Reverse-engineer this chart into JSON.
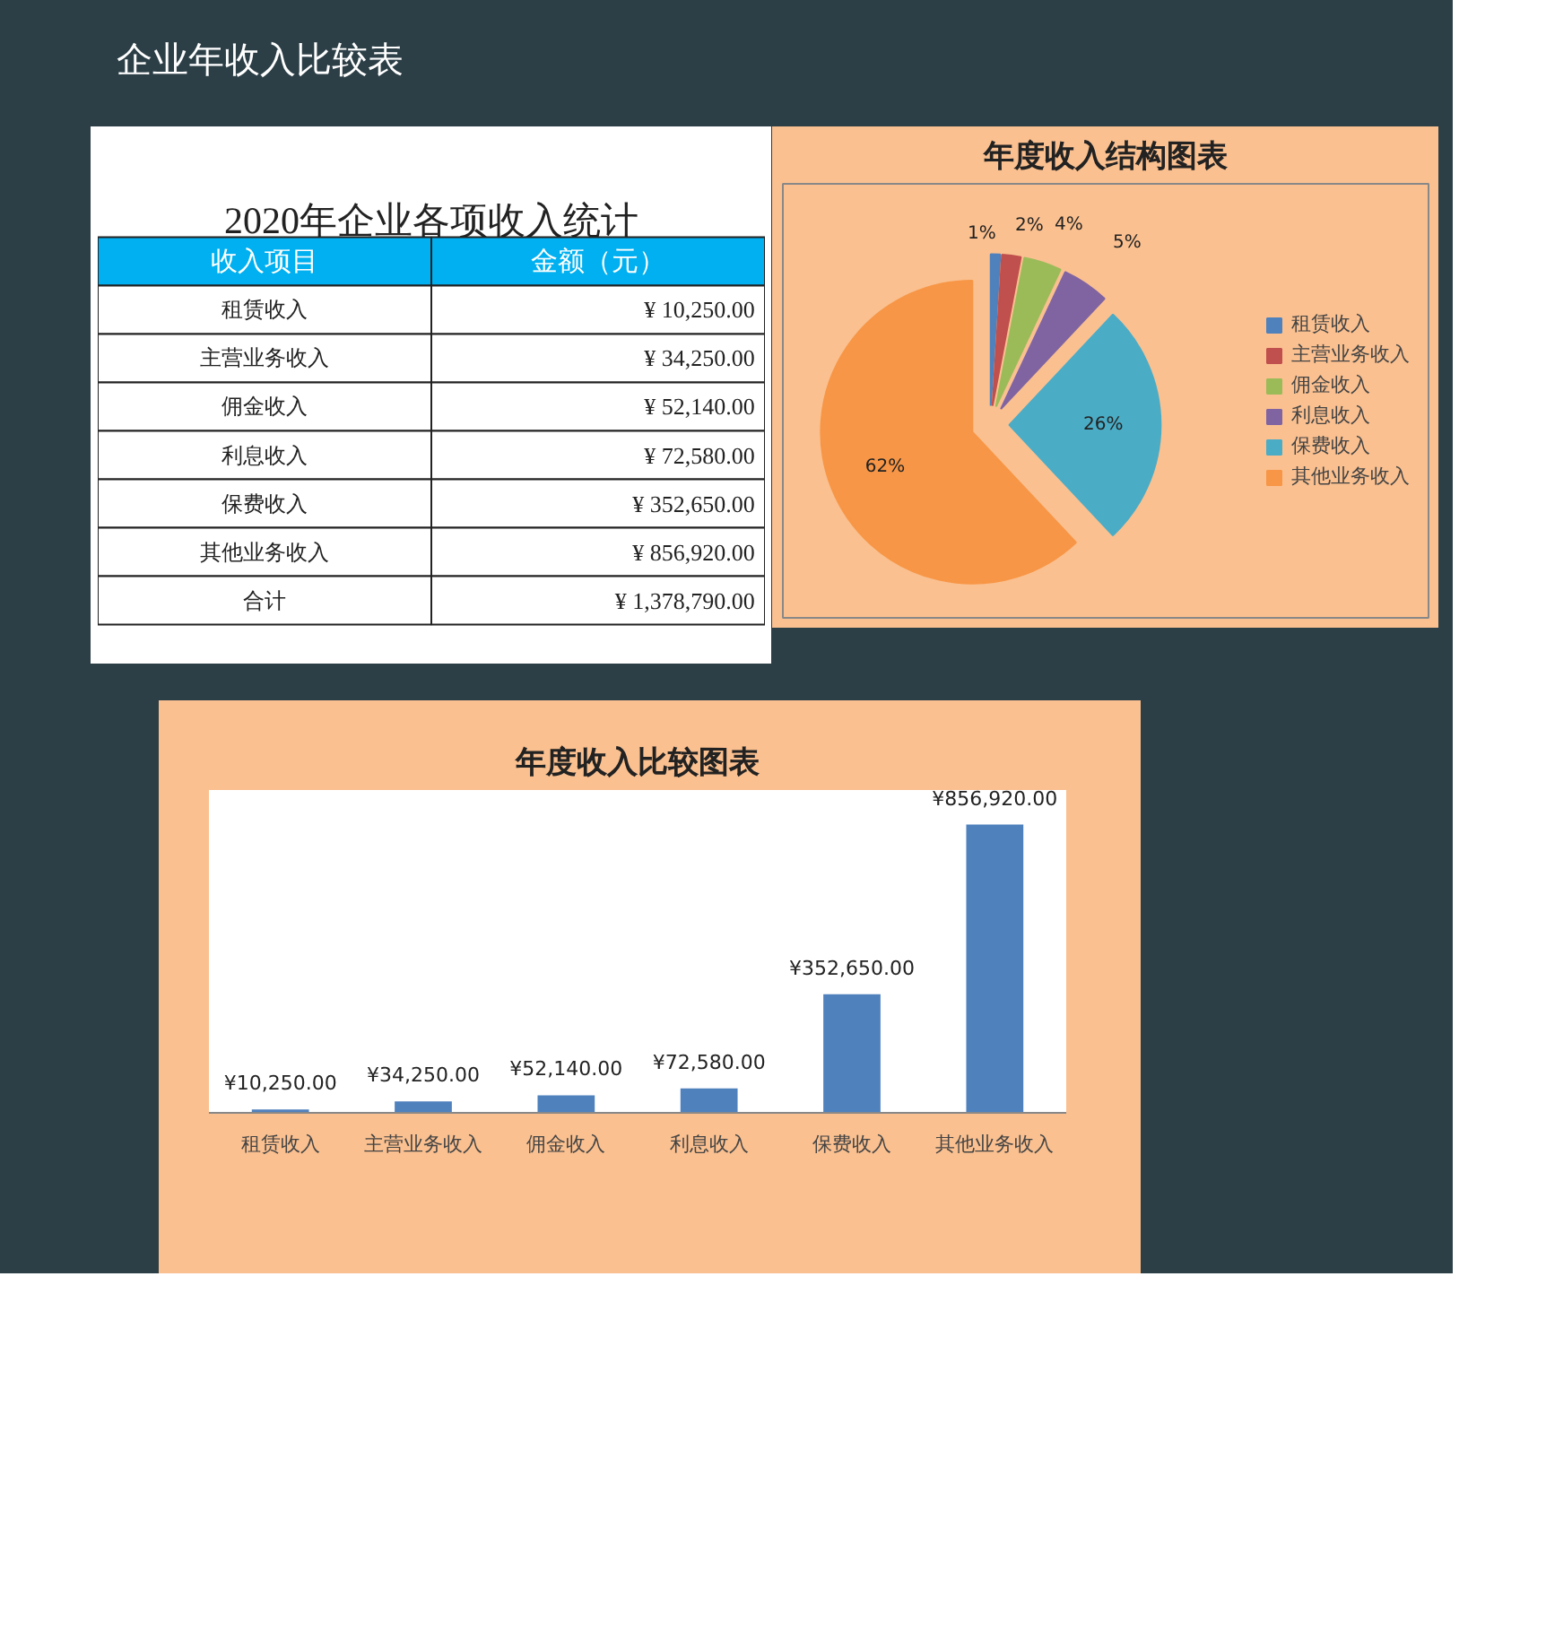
{
  "chart_data": [
    {
      "type": "other",
      "title": "2020年企业各项收入统计",
      "annotations": [
        "企业年收入比较表"
      ],
      "xlabel": "收入项目",
      "ylabel": "金额（元）",
      "categories": [
        "租赁收入",
        "主营业务收入",
        "佣金收入",
        "利息收入",
        "保费收入",
        "其他业务收入",
        "合计"
      ],
      "values": [
        10250,
        34250,
        52140,
        72580,
        352650,
        856920,
        1378790
      ],
      "value_labels": [
        "¥ 10,250.00",
        "¥ 34,250.00",
        "¥ 52,140.00",
        "¥ 72,580.00",
        "¥ 352,650.00",
        "¥ 856,920.00",
        "¥ 1,378,790.00"
      ]
    },
    {
      "type": "pie",
      "title": "年度收入结构图表",
      "legend": "right",
      "data_labels": true,
      "categories": [
        "租赁收入",
        "主营业务收入",
        "佣金收入",
        "利息收入",
        "保费收入",
        "其他业务收入"
      ],
      "values": [
        1,
        2,
        4,
        5,
        26,
        62
      ],
      "value_labels": [
        "1%",
        "2%",
        "4%",
        "5%",
        "26%",
        "62%"
      ],
      "colors": [
        "#4f81bd",
        "#c0504d",
        "#9bbb59",
        "#8064a2",
        "#4bacc6",
        "#f79646"
      ]
    },
    {
      "type": "bar",
      "title": "年度收入比较图表",
      "color": "#4f81bd",
      "categories": [
        "租赁收入",
        "主营业务收入",
        "佣金收入",
        "利息收入",
        "保费收入",
        "其他业务收入"
      ],
      "values": [
        10250,
        34250,
        52140,
        72580,
        352650,
        856920
      ],
      "value_labels": [
        "¥10,250.00",
        "¥34,250.00",
        "¥52,140.00",
        "¥72,580.00",
        "¥352,650.00",
        "¥856,920.00"
      ]
    }
  ]
}
